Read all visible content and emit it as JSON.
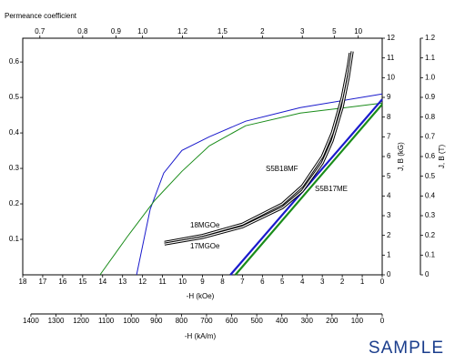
{
  "chart_data": {
    "type": "line",
    "title": "Permeance coefficient",
    "x_label": "-H (kOe)",
    "x2_label": "-H (kA/m)",
    "y_label": "J, B (kG)",
    "y2_label": "J, B (T)",
    "watermark": "SAMPLE",
    "xlim": [
      18,
      0
    ],
    "xticks": [
      18,
      17,
      16,
      15,
      14,
      13,
      12,
      11,
      10,
      9,
      8,
      7,
      6,
      5,
      4,
      3,
      2,
      1,
      0
    ],
    "x2lim": [
      1432.4,
      0
    ],
    "x2ticks": [
      1400,
      1300,
      1200,
      1100,
      1000,
      900,
      800,
      700,
      600,
      500,
      400,
      300,
      200,
      100,
      0
    ],
    "ylim": [
      0,
      12
    ],
    "yticks": [
      0,
      1,
      2,
      3,
      4,
      5,
      6,
      7,
      8,
      9,
      10,
      11,
      12
    ],
    "y2lim": [
      0,
      1.2
    ],
    "y2ticks": [
      0,
      0.1,
      0.2,
      0.3,
      0.4,
      0.5,
      0.6,
      0.7,
      0.8,
      0.9,
      {
        "value": 1,
        "label": "1.0"
      },
      1.1,
      1.2
    ],
    "left_ylim": [
      0,
      0.667
    ],
    "left_yticks": [
      0.1,
      0.2,
      0.3,
      0.4,
      0.5,
      0.6
    ],
    "permeance_ticks": [
      0.7,
      0.8,
      0.9,
      {
        "value": 1,
        "label": "1.0"
      },
      1.2,
      1.5,
      2,
      3,
      5,
      10
    ],
    "series": [
      {
        "color": "#1a1acc",
        "x": [
          12.3,
          11.62,
          10.94,
          10.03,
          8.66,
          6.84,
          4.1,
          0
        ],
        "values": [
          0,
          3.32,
          5.16,
          6.31,
          7.0,
          7.79,
          8.48,
          9.17
        ]
      },
      {
        "color": "#1a8c1a",
        "x": [
          14.13,
          12.76,
          11.39,
          10.03,
          8.66,
          6.84,
          4.1,
          0
        ],
        "values": [
          0,
          1.94,
          3.78,
          5.25,
          6.54,
          7.56,
          8.2,
          8.71
        ]
      },
      {
        "name": "S5B18MF",
        "color": "#1a1acc",
        "x": [
          7.6,
          0
        ],
        "values": [
          0,
          8.9
        ]
      },
      {
        "name": "S5B17ME",
        "color": "#1a8c1a",
        "x": [
          7.35,
          0
        ],
        "values": [
          0,
          8.65
        ]
      },
      {
        "name": "18MGOe",
        "color": "#000000",
        "double": true,
        "x": [
          10.9,
          9,
          7,
          5,
          4,
          3,
          2.5,
          2,
          1.7,
          1.6
        ],
        "values": [
          1.65,
          2.0,
          2.57,
          3.6,
          4.5,
          6.0,
          7.2,
          9.0,
          10.59,
          11.25
        ]
      },
      {
        "name": "17MGOe",
        "color": "#000000",
        "double": true,
        "x": [
          10.9,
          9,
          7,
          5,
          4,
          3,
          2.5,
          2,
          1.7,
          1.5
        ],
        "values": [
          1.56,
          1.89,
          2.43,
          3.4,
          4.25,
          5.67,
          6.8,
          8.5,
          10.0,
          11.33
        ]
      }
    ]
  }
}
